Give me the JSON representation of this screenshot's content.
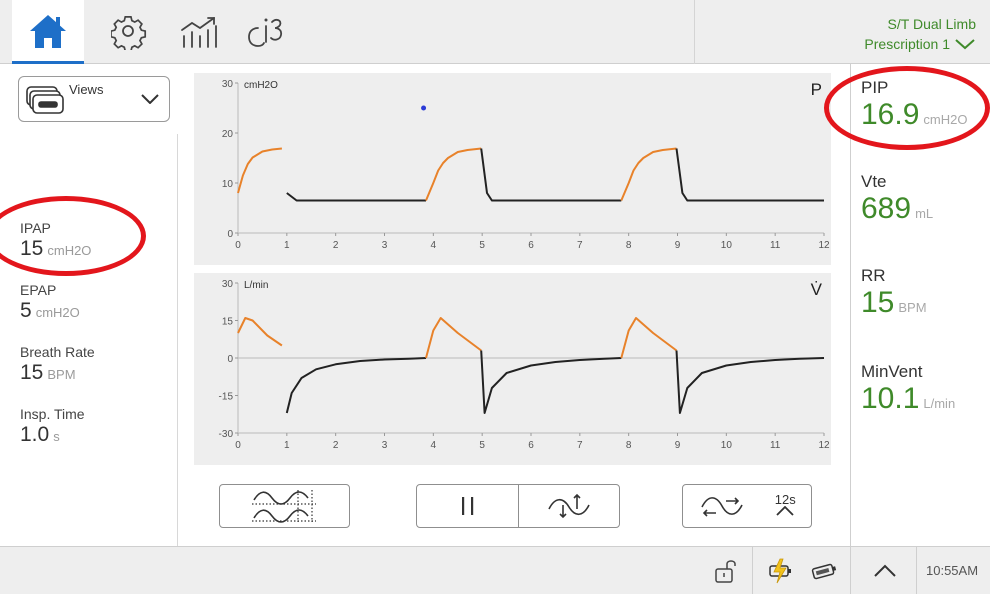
{
  "header": {
    "tabs": [
      {
        "name": "home-icon",
        "active": true
      },
      {
        "name": "gear-icon",
        "active": false
      },
      {
        "name": "trends-icon",
        "active": false
      },
      {
        "name": "info-icon",
        "active": false
      }
    ],
    "mode_line1": "S/T  Dual Limb",
    "mode_line2": "Prescription 1"
  },
  "left": {
    "views_label": "Views",
    "params": [
      {
        "label": "IPAP",
        "value": "15",
        "unit": "cmH2O"
      },
      {
        "label": "EPAP",
        "value": "5",
        "unit": "cmH2O"
      },
      {
        "label": "Breath Rate",
        "value": "15",
        "unit": "BPM"
      },
      {
        "label": "Insp. Time",
        "value": "1.0",
        "unit": "s"
      }
    ]
  },
  "charts": {
    "pressure": {
      "unit": "cmH2O",
      "symbol": "P",
      "y_ticks": [
        "30",
        "20",
        "10",
        "0"
      ],
      "x_ticks": [
        "0",
        "1",
        "2",
        "3",
        "4",
        "5",
        "6",
        "7",
        "8",
        "9",
        "10",
        "11",
        "12"
      ]
    },
    "flow": {
      "unit": "L/min",
      "symbol": "V̇",
      "y_ticks": [
        "30",
        "15",
        "0",
        "-15",
        "-30"
      ],
      "x_ticks": [
        "0",
        "1",
        "2",
        "3",
        "4",
        "5",
        "6",
        "7",
        "8",
        "9",
        "10",
        "11",
        "12"
      ]
    }
  },
  "chart_data": [
    {
      "type": "line",
      "unit": "cmH2O",
      "xlim": [
        0,
        12
      ],
      "ylim": [
        0,
        30
      ],
      "series": [
        {
          "color": "#e8822a",
          "x": [
            0,
            0.1,
            0.2,
            0.3,
            0.5,
            0.7,
            0.9
          ],
          "y": [
            8,
            11.5,
            13.8,
            15.1,
            16.3,
            16.7,
            16.9
          ]
        },
        {
          "color": "#222222",
          "x": [
            1.0,
            1.2,
            3.85
          ],
          "y": [
            8,
            6.5,
            6.5
          ]
        },
        {
          "color": "#e8822a",
          "x": [
            3.85,
            4.0,
            4.1,
            4.2,
            4.3,
            4.5,
            4.7,
            4.98
          ],
          "y": [
            6.5,
            10,
            12.5,
            14,
            15,
            16.2,
            16.6,
            16.9
          ]
        },
        {
          "color": "#222222",
          "x": [
            4.98,
            5.1,
            5.2,
            7.85
          ],
          "y": [
            16.9,
            8,
            6.5,
            6.5
          ]
        },
        {
          "color": "#e8822a",
          "x": [
            7.85,
            8.0,
            8.1,
            8.2,
            8.3,
            8.5,
            8.7,
            8.98
          ],
          "y": [
            6.5,
            10,
            12.5,
            14,
            15,
            16.2,
            16.6,
            16.9
          ]
        },
        {
          "color": "#222222",
          "x": [
            8.98,
            9.1,
            9.2,
            12
          ],
          "y": [
            16.9,
            8,
            6.5,
            6.5
          ]
        }
      ],
      "marker": {
        "color": "#2b3bd6",
        "x": 3.8,
        "y": 25
      }
    },
    {
      "type": "line",
      "unit": "L/min",
      "xlim": [
        0,
        12
      ],
      "ylim": [
        -30,
        30
      ],
      "series": [
        {
          "color": "#e8822a",
          "x": [
            0,
            0.15,
            0.3,
            0.6,
            0.9
          ],
          "y": [
            10,
            16,
            15,
            9,
            5
          ]
        },
        {
          "color": "#222222",
          "x": [
            1.0,
            1.1,
            1.3,
            1.6,
            2.0,
            2.5,
            3.0,
            3.5,
            3.85
          ],
          "y": [
            -22,
            -14,
            -8,
            -4.5,
            -2.5,
            -1.2,
            -0.6,
            -0.3,
            0
          ]
        },
        {
          "color": "#e8822a",
          "x": [
            3.85,
            4.0,
            4.15,
            4.5,
            4.98
          ],
          "y": [
            0,
            11,
            16,
            10,
            3
          ]
        },
        {
          "color": "#222222",
          "x": [
            4.98,
            5.05,
            5.2,
            5.5,
            6.0,
            6.5,
            7.0,
            7.5,
            7.85
          ],
          "y": [
            3,
            -22,
            -12,
            -6,
            -3,
            -1.6,
            -0.8,
            -0.3,
            0
          ]
        },
        {
          "color": "#e8822a",
          "x": [
            7.85,
            8.0,
            8.15,
            8.5,
            8.98
          ],
          "y": [
            0,
            11,
            16,
            10,
            3
          ]
        },
        {
          "color": "#222222",
          "x": [
            8.98,
            9.05,
            9.2,
            9.5,
            10.0,
            10.5,
            11.0,
            11.5,
            12
          ],
          "y": [
            3,
            -22,
            -12,
            -6,
            -3,
            -1.6,
            -0.8,
            -0.3,
            0
          ]
        }
      ]
    }
  ],
  "controls": {
    "time_scale": "12s"
  },
  "right": {
    "params": [
      {
        "label": "PIP",
        "value": "16.9",
        "unit": "cmH2O"
      },
      {
        "label": "Vte",
        "value": "689",
        "unit": "mL"
      },
      {
        "label": "RR",
        "value": "15",
        "unit": "BPM"
      },
      {
        "label": "MinVent",
        "value": "10.1",
        "unit": "L/min"
      }
    ]
  },
  "footer": {
    "time": "10:55AM"
  },
  "colors": {
    "accent_blue": "#1e6fc8",
    "value_green": "#3f8a2a",
    "inspiration_orange": "#e8822a",
    "highlight_red": "#e3161c"
  }
}
